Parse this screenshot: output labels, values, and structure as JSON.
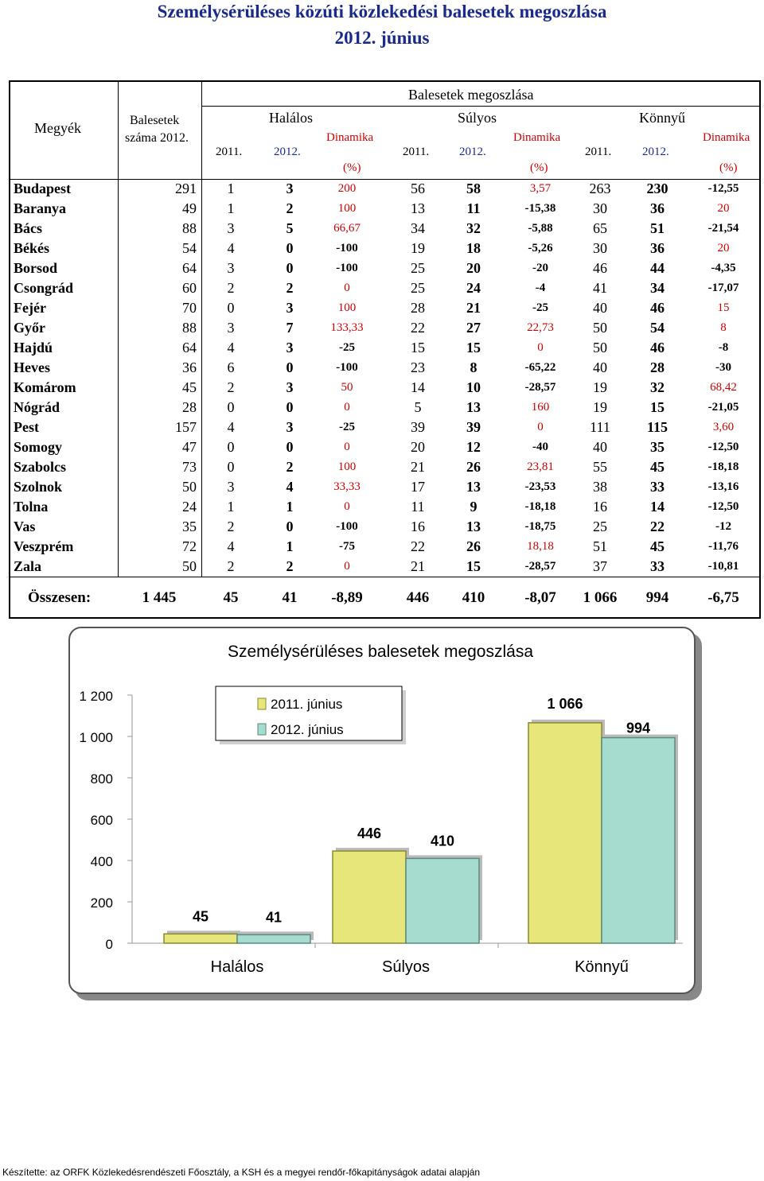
{
  "title": {
    "line1": "Személysérüléses közúti közlekedési balesetek megoszlása",
    "line2": "2012. június"
  },
  "table": {
    "header": {
      "megyek": "Megyék",
      "balesetek_line1": "Balesetek",
      "balesetek_line2": "száma 2012.",
      "group": "Balesetek megoszlása",
      "halalos": "Halálos",
      "sulyos": "Súlyos",
      "konnyu": "Könnyű",
      "y2011": "2011.",
      "y2012": "2012.",
      "dinamika": "Dinamika",
      "pct": "(%)"
    },
    "rows": [
      [
        "Budapest",
        "291",
        "1",
        "3",
        "200",
        "56",
        "58",
        "3,57",
        "263",
        "230",
        "-12,55"
      ],
      [
        "Baranya",
        "49",
        "1",
        "2",
        "100",
        "13",
        "11",
        "-15,38",
        "30",
        "36",
        "20"
      ],
      [
        "Bács",
        "88",
        "3",
        "5",
        "66,67",
        "34",
        "32",
        "-5,88",
        "65",
        "51",
        "-21,54"
      ],
      [
        "Békés",
        "54",
        "4",
        "0",
        "-100",
        "19",
        "18",
        "-5,26",
        "30",
        "36",
        "20"
      ],
      [
        "Borsod",
        "64",
        "3",
        "0",
        "-100",
        "25",
        "20",
        "-20",
        "46",
        "44",
        "-4,35"
      ],
      [
        "Csongrád",
        "60",
        "2",
        "2",
        "0",
        "25",
        "24",
        "-4",
        "41",
        "34",
        "-17,07"
      ],
      [
        "Fejér",
        "70",
        "0",
        "3",
        "100",
        "28",
        "21",
        "-25",
        "40",
        "46",
        "15"
      ],
      [
        "Győr",
        "88",
        "3",
        "7",
        "133,33",
        "22",
        "27",
        "22,73",
        "50",
        "54",
        "8"
      ],
      [
        "Hajdú",
        "64",
        "4",
        "3",
        "-25",
        "15",
        "15",
        "0",
        "50",
        "46",
        "-8"
      ],
      [
        "Heves",
        "36",
        "6",
        "0",
        "-100",
        "23",
        "8",
        "-65,22",
        "40",
        "28",
        "-30"
      ],
      [
        "Komárom",
        "45",
        "2",
        "3",
        "50",
        "14",
        "10",
        "-28,57",
        "19",
        "32",
        "68,42"
      ],
      [
        "Nógrád",
        "28",
        "0",
        "0",
        "0",
        "5",
        "13",
        "160",
        "19",
        "15",
        "-21,05"
      ],
      [
        "Pest",
        "157",
        "4",
        "3",
        "-25",
        "39",
        "39",
        "0",
        "111",
        "115",
        "3,60"
      ],
      [
        "Somogy",
        "47",
        "0",
        "0",
        "0",
        "20",
        "12",
        "-40",
        "40",
        "35",
        "-12,50"
      ],
      [
        "Szabolcs",
        "73",
        "0",
        "2",
        "100",
        "21",
        "26",
        "23,81",
        "55",
        "45",
        "-18,18"
      ],
      [
        "Szolnok",
        "50",
        "3",
        "4",
        "33,33",
        "17",
        "13",
        "-23,53",
        "38",
        "33",
        "-13,16"
      ],
      [
        "Tolna",
        "24",
        "1",
        "1",
        "0",
        "11",
        "9",
        "-18,18",
        "16",
        "14",
        "-12,50"
      ],
      [
        "Vas",
        "35",
        "2",
        "0",
        "-100",
        "16",
        "13",
        "-18,75",
        "25",
        "22",
        "-12"
      ],
      [
        "Veszprém",
        "72",
        "4",
        "1",
        "-75",
        "22",
        "26",
        "18,18",
        "51",
        "45",
        "-11,76"
      ],
      [
        "Zala",
        "50",
        "2",
        "2",
        "0",
        "21",
        "15",
        "-28,57",
        "37",
        "33",
        "-10,81"
      ]
    ],
    "total": [
      "Összesen:",
      "1 445",
      "45",
      "41",
      "-8,89",
      "446",
      "410",
      "-8,07",
      "1 066",
      "994",
      "-6,75"
    ]
  },
  "chart_data": {
    "type": "bar",
    "title": "Személysérüléses balesetek megoszlása",
    "categories": [
      "Halálos",
      "Súlyos",
      "Könnyű"
    ],
    "series": [
      {
        "name": "2011. június",
        "values": [
          45,
          446,
          1066
        ],
        "color": "#e6e67a"
      },
      {
        "name": "2012. június",
        "values": [
          41,
          410,
          994
        ],
        "color": "#a6dcd0"
      }
    ],
    "data_labels": [
      [
        "45",
        "446",
        "1 066"
      ],
      [
        "41",
        "410",
        "994"
      ]
    ],
    "yticks": [
      "0",
      "200",
      "400",
      "600",
      "800",
      "1 000",
      "1 200"
    ],
    "ylim": [
      0,
      1200
    ],
    "legend": "top-left"
  },
  "footer": "Készítette: az ORFK  Közlekedésrendészeti Főosztály, a KSH és a megyei rendőr-főkapitányságok adatai alapján"
}
